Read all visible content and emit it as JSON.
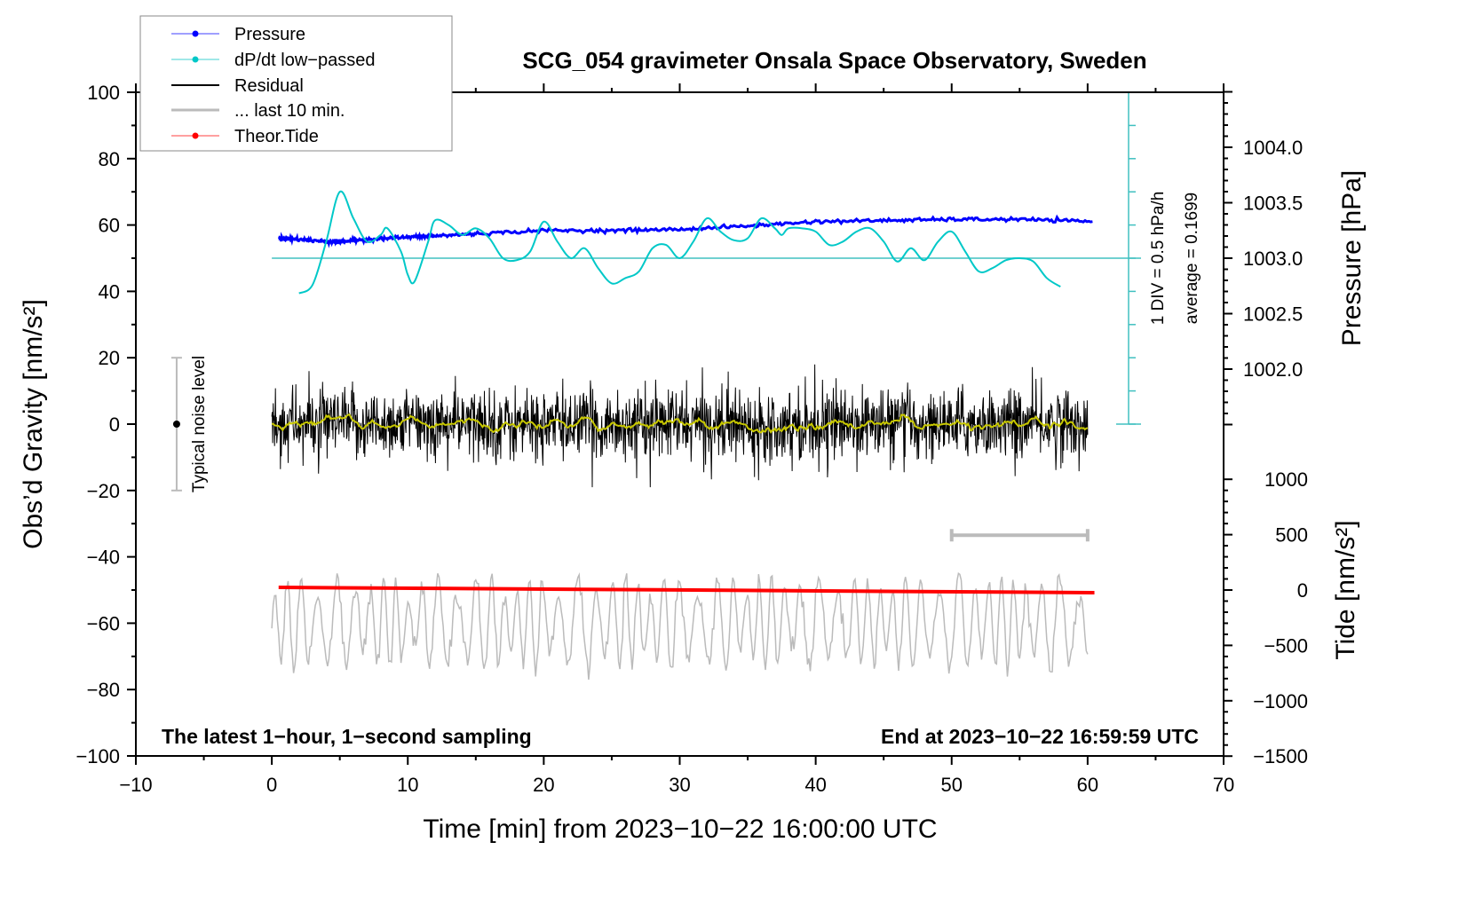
{
  "chart_data": {
    "type": "line",
    "title": "SCG_054 gravimeter Onsala Space Observatory, Sweden",
    "xlabel": "Time [min] from 2023−10−22 16:00:00 UTC",
    "ylabel_left": "Obs’d Gravity [nm/s²]",
    "ylabel_right_top": "Pressure [hPa]",
    "ylabel_right_bottom": "Tide [nm/s²]",
    "xlim": [
      -10,
      70
    ],
    "ylim_left": [
      -100,
      100
    ],
    "ylim_pressure": [
      1001.5,
      1004.5
    ],
    "ylim_tide": [
      -1500,
      1000
    ],
    "x_ticks": [
      "−10",
      "0",
      "10",
      "20",
      "30",
      "40",
      "50",
      "60",
      "70"
    ],
    "x_tick_values": [
      -10,
      0,
      10,
      20,
      30,
      40,
      50,
      60,
      70
    ],
    "y_left_ticks": [
      "100",
      "80",
      "60",
      "40",
      "20",
      "0",
      "−20",
      "−40",
      "−60",
      "−80",
      "−100"
    ],
    "y_left_tick_values": [
      100,
      80,
      60,
      40,
      20,
      0,
      -20,
      -40,
      -60,
      -80,
      -100
    ],
    "pressure_ticks": [
      "1004.0",
      "1003.5",
      "1003.0",
      "1002.5",
      "1002.0"
    ],
    "pressure_tick_values": [
      1004.0,
      1003.5,
      1003.0,
      1002.5,
      1002.0
    ],
    "tide_ticks": [
      "1000",
      "500",
      "0",
      "−500",
      "−1000",
      "−1500"
    ],
    "tide_tick_values": [
      1000,
      500,
      0,
      -500,
      -1000,
      -1500
    ],
    "legend": {
      "placement": "top-left",
      "entries": [
        "Pressure",
        "dP/dt low−passed",
        "Residual",
        "... last 10 min.",
        "Theor.Tide"
      ]
    },
    "annotations": {
      "left_note": "The latest 1−hour, 1−second sampling",
      "right_note": "End at 2023−10−22 16:59:59 UTC",
      "noise_label": "Typical noise level",
      "div_label": "1 DIV = 0.5 hPa/h",
      "average_label": "average = 0.1699"
    },
    "noise_level": {
      "x": -7,
      "center": 0,
      "half_range": 20
    },
    "dpdt_average": 0.1699,
    "dpdt_div": 0.5,
    "last10_range_min": [
      50,
      60
    ],
    "series": [
      {
        "name": "Pressure",
        "color": "#0000ff",
        "unit": "hPa",
        "x": [
          0.5,
          2,
          4,
          5,
          7,
          10,
          12,
          15,
          20,
          25,
          30,
          35,
          40,
          45,
          50,
          55,
          60.5
        ],
        "y": [
          1003.18,
          1003.17,
          1003.15,
          1003.15,
          1003.17,
          1003.19,
          1003.2,
          1003.22,
          1003.25,
          1003.25,
          1003.26,
          1003.29,
          1003.33,
          1003.34,
          1003.35,
          1003.35,
          1003.33
        ]
      },
      {
        "name": "dP/dt low−passed",
        "color": "#00c8c8",
        "unit": "hPa/h",
        "x": [
          2,
          3,
          4,
          5,
          6,
          7,
          8,
          8.5,
          9.5,
          10,
          10.5,
          11.5,
          12,
          13,
          14,
          15,
          16,
          17,
          18,
          19,
          20,
          21,
          22,
          23,
          24,
          25,
          26,
          27,
          28,
          29,
          30,
          31,
          32,
          33,
          34,
          35,
          36,
          37,
          37.5,
          38,
          39,
          40,
          41,
          42,
          43,
          44,
          45,
          46,
          47,
          48,
          49,
          50,
          51,
          52,
          53,
          54,
          55,
          56,
          57,
          58
        ],
        "y": [
          -0.36,
          -0.23,
          0.42,
          1.17,
          0.77,
          0.42,
          0.52,
          0.62,
          0.27,
          -0.08,
          -0.18,
          0.42,
          0.74,
          0.67,
          0.52,
          0.62,
          0.47,
          0.17,
          0.14,
          0.27,
          0.72,
          0.42,
          0.17,
          0.32,
          0.02,
          -0.21,
          -0.13,
          -0.03,
          0.32,
          0.37,
          0.17,
          0.42,
          0.77,
          0.57,
          0.44,
          0.47,
          0.77,
          0.62,
          0.52,
          0.62,
          0.62,
          0.57,
          0.37,
          0.42,
          0.57,
          0.62,
          0.42,
          0.12,
          0.32,
          0.14,
          0.42,
          0.57,
          0.27,
          -0.03,
          0.02,
          0.14,
          0.17,
          0.12,
          -0.13,
          -0.26
        ]
      },
      {
        "name": "Residual",
        "color": "#000000",
        "unit": "nm/s²",
        "x_range": [
          0,
          60
        ],
        "noise_std": 5.5,
        "min": -19,
        "max": 18
      },
      {
        "name": "Residual smoothed",
        "color": "#c8c800",
        "unit": "nm/s²"
      },
      {
        "name": "... last 10 min.",
        "color": "#bbbbbb",
        "unit": "nm/s²",
        "x_range": [
          0,
          60
        ],
        "offset": -60,
        "min": -77,
        "max": -45
      },
      {
        "name": "Theor.Tide",
        "color": "#ff0000",
        "unit": "nm/s²",
        "x": [
          0.5,
          60.5
        ],
        "y": [
          24,
          -24
        ]
      }
    ]
  }
}
